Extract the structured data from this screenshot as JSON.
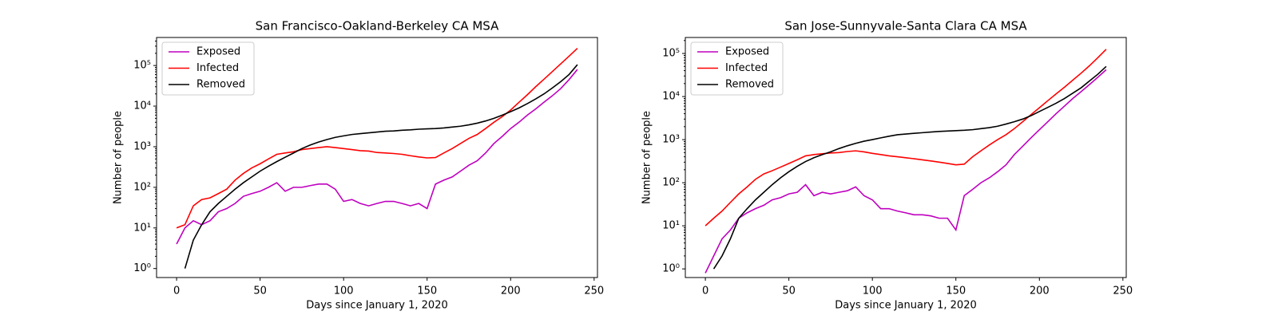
{
  "chart_data": [
    {
      "type": "line",
      "title": "San Francisco-Oakland-Berkeley CA MSA",
      "x_label": "Days since January 1, 2020",
      "y_label": "Number of people",
      "yscale": "log",
      "legend": "upper left",
      "xlim": [
        -12,
        252
      ],
      "ylim": [
        0.6,
        490000
      ],
      "xticks": [
        0,
        50,
        100,
        150,
        200,
        250
      ],
      "yticks": [
        {
          "value": 1,
          "label": "10⁰"
        },
        {
          "value": 10,
          "label": "10¹"
        },
        {
          "value": 100,
          "label": "10²"
        },
        {
          "value": 1000,
          "label": "10³"
        },
        {
          "value": 10000,
          "label": "10⁴"
        },
        {
          "value": 100000,
          "label": "10⁵"
        }
      ],
      "x": [
        0,
        5,
        10,
        15,
        20,
        25,
        30,
        35,
        40,
        45,
        50,
        55,
        60,
        65,
        70,
        75,
        80,
        85,
        90,
        95,
        100,
        105,
        110,
        115,
        120,
        125,
        130,
        135,
        140,
        145,
        150,
        155,
        160,
        165,
        170,
        175,
        180,
        185,
        190,
        195,
        200,
        205,
        210,
        215,
        220,
        225,
        230,
        235,
        240
      ],
      "series": [
        {
          "name": "Exposed",
          "color": "#bf00bf",
          "values": [
            4,
            10,
            15,
            12,
            15,
            25,
            30,
            40,
            60,
            70,
            80,
            100,
            130,
            80,
            100,
            100,
            110,
            120,
            120,
            90,
            45,
            50,
            40,
            35,
            40,
            45,
            45,
            40,
            35,
            40,
            30,
            120,
            150,
            180,
            250,
            350,
            450,
            700,
            1200,
            1800,
            2800,
            4000,
            6000,
            8500,
            12500,
            18000,
            27000,
            45000,
            80000
          ]
        },
        {
          "name": "Infected",
          "color": "#ff0000",
          "values": [
            10,
            12,
            35,
            50,
            55,
            70,
            90,
            150,
            220,
            300,
            380,
            500,
            650,
            700,
            750,
            850,
            900,
            950,
            1000,
            950,
            900,
            850,
            800,
            780,
            720,
            700,
            680,
            650,
            600,
            560,
            530,
            540,
            700,
            900,
            1200,
            1600,
            2000,
            2800,
            4000,
            5500,
            8000,
            12400,
            19000,
            30000,
            46000,
            71000,
            110000,
            170000,
            265000
          ]
        },
        {
          "name": "Removed",
          "color": "#000000",
          "values": [
            null,
            1,
            5,
            12,
            25,
            40,
            60,
            90,
            130,
            180,
            250,
            330,
            430,
            550,
            700,
            900,
            1100,
            1300,
            1500,
            1700,
            1850,
            2000,
            2100,
            2200,
            2300,
            2400,
            2450,
            2550,
            2600,
            2700,
            2750,
            2800,
            2900,
            3050,
            3200,
            3450,
            3800,
            4300,
            5000,
            6000,
            7300,
            9000,
            11500,
            15000,
            20000,
            28000,
            40000,
            60000,
            105000
          ]
        }
      ]
    },
    {
      "type": "line",
      "title": "San Jose-Sunnyvale-Santa Clara CA MSA",
      "x_label": "Days since January 1, 2020",
      "y_label": "Number of people",
      "yscale": "log",
      "legend": "upper left",
      "xlim": [
        -12,
        252
      ],
      "ylim": [
        0.63,
        235000
      ],
      "xticks": [
        0,
        50,
        100,
        150,
        200,
        250
      ],
      "yticks": [
        {
          "value": 1,
          "label": "10⁰"
        },
        {
          "value": 10,
          "label": "10¹"
        },
        {
          "value": 100,
          "label": "10²"
        },
        {
          "value": 1000,
          "label": "10³"
        },
        {
          "value": 10000,
          "label": "10⁴"
        },
        {
          "value": 100000,
          "label": "10⁵"
        }
      ],
      "x": [
        0,
        5,
        10,
        15,
        20,
        25,
        30,
        35,
        40,
        45,
        50,
        55,
        60,
        65,
        70,
        75,
        80,
        85,
        90,
        95,
        100,
        105,
        110,
        115,
        120,
        125,
        130,
        135,
        140,
        145,
        150,
        155,
        160,
        165,
        170,
        175,
        180,
        185,
        190,
        195,
        200,
        205,
        210,
        215,
        220,
        225,
        230,
        235,
        240
      ],
      "series": [
        {
          "name": "Exposed",
          "color": "#bf00bf",
          "values": [
            0.8,
            2,
            5,
            8,
            15,
            20,
            25,
            30,
            40,
            45,
            55,
            60,
            90,
            50,
            60,
            55,
            60,
            65,
            80,
            50,
            40,
            25,
            25,
            22,
            20,
            18,
            18,
            17,
            15,
            15,
            8,
            50,
            70,
            100,
            130,
            180,
            260,
            450,
            700,
            1100,
            1700,
            2600,
            4000,
            6000,
            9000,
            13000,
            19000,
            28000,
            42000
          ]
        },
        {
          "name": "Infected",
          "color": "#ff0000",
          "values": [
            10,
            15,
            22,
            35,
            55,
            80,
            120,
            160,
            190,
            230,
            280,
            340,
            420,
            450,
            470,
            490,
            500,
            530,
            550,
            520,
            480,
            450,
            420,
            400,
            380,
            360,
            340,
            320,
            300,
            280,
            260,
            270,
            400,
            550,
            750,
            1000,
            1300,
            1800,
            2600,
            3800,
            5500,
            8000,
            11500,
            16500,
            24000,
            35000,
            52000,
            80000,
            125000
          ]
        },
        {
          "name": "Removed",
          "color": "#000000",
          "values": [
            null,
            1,
            2,
            5,
            15,
            25,
            40,
            60,
            90,
            130,
            180,
            240,
            310,
            380,
            450,
            520,
            620,
            720,
            820,
            920,
            1000,
            1100,
            1200,
            1300,
            1350,
            1400,
            1450,
            1500,
            1550,
            1580,
            1620,
            1650,
            1700,
            1800,
            1900,
            2050,
            2300,
            2600,
            3000,
            3600,
            4500,
            5600,
            7000,
            9000,
            12000,
            16000,
            23000,
            33000,
            50000
          ]
        }
      ]
    }
  ]
}
